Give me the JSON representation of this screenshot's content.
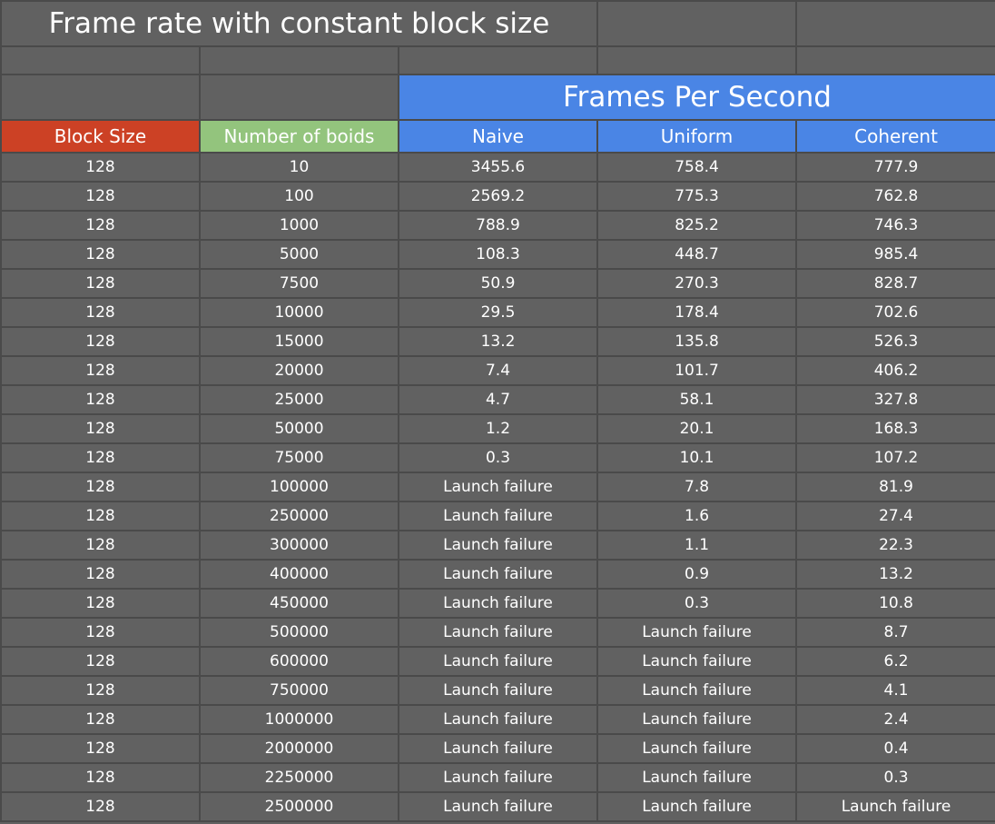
{
  "title": "Frame rate with constant block size",
  "group_header": "Frames Per Second",
  "colors": {
    "background": "#616161",
    "grid": "#4a4a4a",
    "block_size_header": "#cc4125",
    "boids_header": "#93c47d",
    "fps_header": "#4a85e5"
  },
  "chart_data": {
    "type": "table",
    "title": "Frame rate with constant block size",
    "group_header": "Frames Per Second",
    "columns": [
      "Block Size",
      "Number of boids",
      "Naive",
      "Uniform",
      "Coherent"
    ],
    "rows": [
      [
        "128",
        "10",
        "3455.6",
        "758.4",
        "777.9"
      ],
      [
        "128",
        "100",
        "2569.2",
        "775.3",
        "762.8"
      ],
      [
        "128",
        "1000",
        "788.9",
        "825.2",
        "746.3"
      ],
      [
        "128",
        "5000",
        "108.3",
        "448.7",
        "985.4"
      ],
      [
        "128",
        "7500",
        "50.9",
        "270.3",
        "828.7"
      ],
      [
        "128",
        "10000",
        "29.5",
        "178.4",
        "702.6"
      ],
      [
        "128",
        "15000",
        "13.2",
        "135.8",
        "526.3"
      ],
      [
        "128",
        "20000",
        "7.4",
        "101.7",
        "406.2"
      ],
      [
        "128",
        "25000",
        "4.7",
        "58.1",
        "327.8"
      ],
      [
        "128",
        "50000",
        "1.2",
        "20.1",
        "168.3"
      ],
      [
        "128",
        "75000",
        "0.3",
        "10.1",
        "107.2"
      ],
      [
        "128",
        "100000",
        "Launch failure",
        "7.8",
        "81.9"
      ],
      [
        "128",
        "250000",
        "Launch failure",
        "1.6",
        "27.4"
      ],
      [
        "128",
        "300000",
        "Launch failure",
        "1.1",
        "22.3"
      ],
      [
        "128",
        "400000",
        "Launch failure",
        "0.9",
        "13.2"
      ],
      [
        "128",
        "450000",
        "Launch failure",
        "0.3",
        "10.8"
      ],
      [
        "128",
        "500000",
        "Launch failure",
        "Launch failure",
        "8.7"
      ],
      [
        "128",
        "600000",
        "Launch failure",
        "Launch failure",
        "6.2"
      ],
      [
        "128",
        "750000",
        "Launch failure",
        "Launch failure",
        "4.1"
      ],
      [
        "128",
        "1000000",
        "Launch failure",
        "Launch failure",
        "2.4"
      ],
      [
        "128",
        "2000000",
        "Launch failure",
        "Launch failure",
        "0.4"
      ],
      [
        "128",
        "2250000",
        "Launch failure",
        "Launch failure",
        "0.3"
      ],
      [
        "128",
        "2500000",
        "Launch failure",
        "Launch failure",
        "Launch failure"
      ]
    ]
  }
}
